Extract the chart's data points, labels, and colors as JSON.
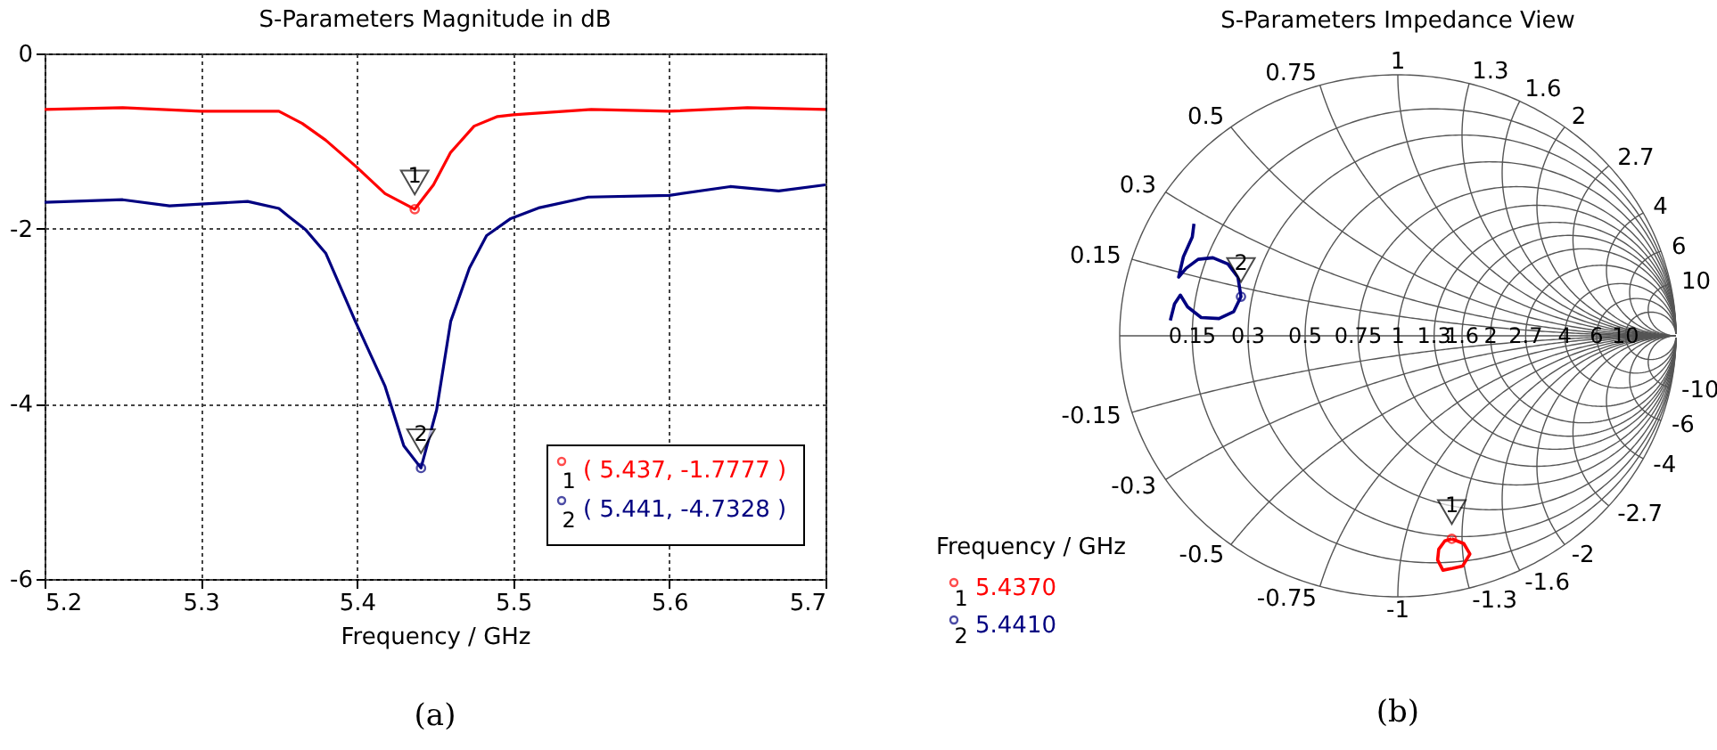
{
  "chart_data": [
    {
      "type": "line",
      "title": "S-Parameters Magnitude in dB",
      "xlabel": "Frequency / GHz",
      "xlim": [
        5.2,
        5.7
      ],
      "xticks": [
        5.2,
        5.3,
        5.4,
        5.5,
        5.6,
        5.7
      ],
      "ylim": [
        -6,
        0
      ],
      "yticks": [
        -6,
        -4,
        -2,
        0
      ],
      "grid": true,
      "legend": "bottom right",
      "series": [
        {
          "name": "1",
          "color": "#ff0000",
          "x": [
            5.2,
            5.25,
            5.3,
            5.35,
            5.365,
            5.38,
            5.4,
            5.418,
            5.437,
            5.449,
            5.46,
            5.475,
            5.49,
            5.5,
            5.55,
            5.6,
            5.65,
            5.7
          ],
          "values": [
            -0.64,
            -0.62,
            -0.66,
            -0.66,
            -0.8,
            -0.99,
            -1.3,
            -1.6,
            -1.7777,
            -1.5,
            -1.13,
            -0.83,
            -0.72,
            -0.7,
            -0.64,
            -0.66,
            -0.62,
            -0.64
          ]
        },
        {
          "name": "2",
          "color": "#000080",
          "x": [
            5.2,
            5.25,
            5.28,
            5.33,
            5.35,
            5.357,
            5.367,
            5.38,
            5.399,
            5.418,
            5.43,
            5.441,
            5.451,
            5.46,
            5.472,
            5.483,
            5.498,
            5.517,
            5.548,
            5.6,
            5.639,
            5.67,
            5.7
          ],
          "values": [
            -1.7,
            -1.67,
            -1.74,
            -1.69,
            -1.77,
            -1.87,
            -2.01,
            -2.28,
            -3.06,
            -3.8,
            -4.48,
            -4.7328,
            -4.07,
            -3.06,
            -2.45,
            -2.08,
            -1.89,
            -1.76,
            -1.64,
            -1.62,
            -1.52,
            -1.57,
            -1.5
          ]
        }
      ],
      "annotations": [
        {
          "text": "1",
          "x": 5.437,
          "y": -1.7777
        },
        {
          "text": "2",
          "x": 5.441,
          "y": -4.7328
        },
        "( 5.437, -1.7777 )",
        "( 5.441, -4.7328 )",
        "(a)"
      ]
    },
    {
      "type": "other",
      "title": "S-Parameters Impedance View",
      "legend_title": "Frequency / GHz",
      "legend": "bottom left",
      "series": [
        {
          "name": "1",
          "color": "#ff0000"
        },
        {
          "name": "2",
          "color": "#000080"
        }
      ],
      "annotations": [
        "0.15",
        "0.3",
        "0.5",
        "0.75",
        "1",
        "1.3",
        "1.6",
        "2",
        "2.7",
        "4",
        "6",
        "10",
        "0.15",
        "0.3",
        "0.5",
        "0.75",
        "1",
        "1.3",
        "1.6",
        "2",
        "2.7",
        "4",
        "6",
        "10",
        "-0.15",
        "-0.3",
        "-0.5",
        "-0.75",
        "-1",
        "-1.3",
        "-1.6",
        "-2",
        "-2.7",
        "-4",
        "-6",
        "-10",
        "1",
        "2",
        "5.4370",
        "5.4410",
        "(b)"
      ]
    }
  ]
}
